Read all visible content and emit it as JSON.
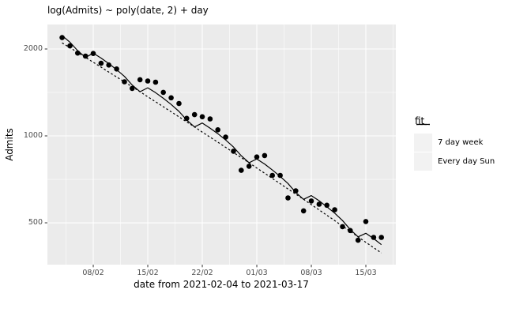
{
  "title": "log(Admits) ~ poly(date, 2) + day",
  "x_axis": {
    "label": "date from 2021-02-04 to 2021-03-17",
    "tick_labels": [
      "08/02",
      "15/02",
      "22/02",
      "01/03",
      "08/03",
      "15/03"
    ]
  },
  "y_axis": {
    "label": "Admits",
    "tick_labels": [
      "500",
      "1000",
      "2000"
    ],
    "tick_values": [
      500,
      1000,
      2000
    ]
  },
  "legend": {
    "title": "fit",
    "items": [
      {
        "label": "7 day week",
        "linetype": "solid"
      },
      {
        "label": "Every day Sun",
        "linetype": "dashed"
      }
    ]
  },
  "colors": {
    "panel_background": "#EBEBEB",
    "gridline": "#FFFFFF",
    "point": "#000000",
    "line": "#000000",
    "tick_text": "#4D4D4D",
    "tick_mark": "#333333",
    "legend_key_background": "#F2F2F2",
    "figure_background": "#FFFFFF"
  },
  "chart_data": {
    "type": "scatter",
    "title": "log(Admits) ~ poly(date, 2) + day",
    "xlabel": "date from 2021-02-04 to 2021-03-17",
    "ylabel": "Admits",
    "y_scale": "log10",
    "ylim": [
      380,
      2400
    ],
    "x_range": [
      "2021-02-04",
      "2021-03-17"
    ],
    "x_dates": [
      "2021-02-04",
      "2021-02-05",
      "2021-02-06",
      "2021-02-07",
      "2021-02-08",
      "2021-02-09",
      "2021-02-10",
      "2021-02-11",
      "2021-02-12",
      "2021-02-13",
      "2021-02-14",
      "2021-02-15",
      "2021-02-16",
      "2021-02-17",
      "2021-02-18",
      "2021-02-19",
      "2021-02-20",
      "2021-02-21",
      "2021-02-22",
      "2021-02-23",
      "2021-02-24",
      "2021-02-25",
      "2021-02-26",
      "2021-02-27",
      "2021-02-28",
      "2021-03-01",
      "2021-03-02",
      "2021-03-03",
      "2021-03-04",
      "2021-03-05",
      "2021-03-06",
      "2021-03-07",
      "2021-03-08",
      "2021-03-09",
      "2021-03-10",
      "2021-03-11",
      "2021-03-12",
      "2021-03-13",
      "2021-03-14",
      "2021-03-15",
      "2021-03-16",
      "2021-03-17"
    ],
    "points": [
      2190,
      2050,
      1935,
      1890,
      1930,
      1785,
      1760,
      1705,
      1540,
      1460,
      1565,
      1550,
      1535,
      1415,
      1355,
      1295,
      1150,
      1185,
      1165,
      1145,
      1050,
      990,
      885,
      760,
      785,
      845,
      855,
      730,
      730,
      610,
      645,
      550,
      595,
      580,
      575,
      555,
      485,
      470,
      435,
      505,
      445,
      445
    ],
    "series": [
      {
        "name": "7 day week",
        "style": "solid",
        "values": [
          2226,
          2112,
          1974,
          1870,
          1934,
          1860,
          1780,
          1696,
          1607,
          1501,
          1422,
          1468,
          1412,
          1350,
          1285,
          1216,
          1135,
          1074,
          1108,
          1064,
          1018,
          968,
          915,
          854,
          807,
          832,
          799,
          762,
          724,
          684,
          637,
          603,
          621,
          596,
          568,
          540,
          509,
          474,
          447,
          460,
          441,
          420
        ]
      },
      {
        "name": "Every day Sun",
        "style": "dashed",
        "values": [
          2100,
          2021,
          1945,
          1870,
          1799,
          1730,
          1664,
          1600,
          1538,
          1479,
          1422,
          1366,
          1313,
          1262,
          1212,
          1164,
          1118,
          1074,
          1031,
          990,
          951,
          913,
          876,
          841,
          807,
          774,
          743,
          712,
          683,
          655,
          628,
          603,
          578,
          554,
          531,
          509,
          487,
          467,
          447,
          428,
          410,
          393
        ]
      }
    ],
    "y_ticks": [
      500,
      1000,
      2000
    ],
    "y_minor_ticks": [
      707,
      1414
    ],
    "x_tick_days": [
      4,
      11,
      18,
      25,
      32,
      39
    ],
    "x_minor_tick_days": [
      0.5,
      7.5,
      14.5,
      21.5,
      28.5,
      35.5,
      42.5
    ],
    "legend_position": "right",
    "grid": true
  }
}
